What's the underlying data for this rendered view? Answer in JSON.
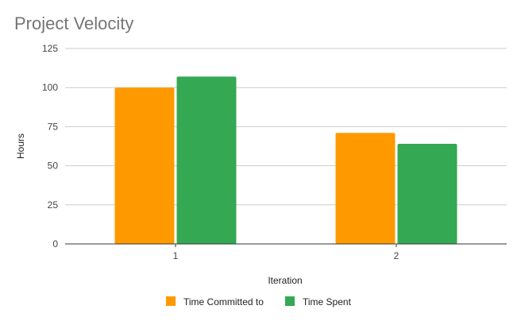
{
  "chart_data": {
    "type": "bar",
    "title": "Project Velocity",
    "xlabel": "Iteration",
    "ylabel": "Hours",
    "categories": [
      "1",
      "2"
    ],
    "series": [
      {
        "name": "Time Committed to",
        "values": [
          100,
          71
        ],
        "color": "#ff9900"
      },
      {
        "name": "Time Spent",
        "values": [
          107,
          64
        ],
        "color": "#34a853"
      }
    ],
    "ylim": [
      0,
      125
    ],
    "yticks": [
      "0",
      "25",
      "50",
      "75",
      "100",
      "125"
    ],
    "grid": true,
    "legend": "bottom"
  }
}
